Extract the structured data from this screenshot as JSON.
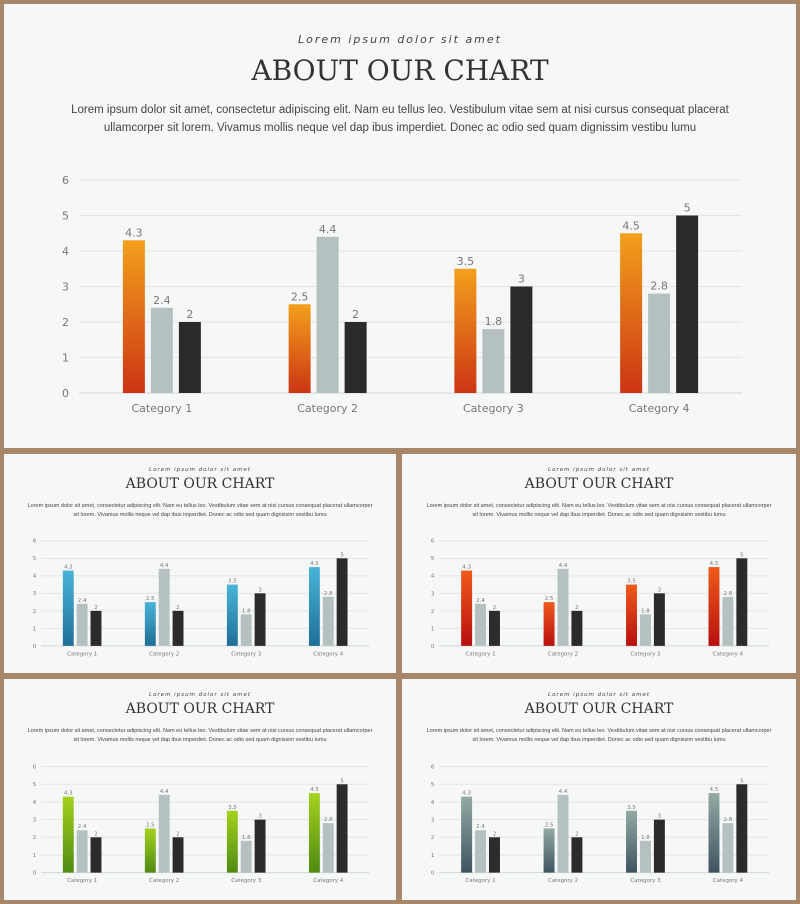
{
  "subtitle": "Lorem ipsum dolor sit amet",
  "title": "ABOUT OUR CHART",
  "body": "Lorem ipsum dolor sit amet, consectetur adipiscing elit. Nam eu tellus leo. Vestibulum vitae sem at nisi cursus consequat placerat ullamcorper sit lorem. Vivamus mollis neque vel dap ibus imperdiet. Donec ac odio sed quam dignissim vestibu lumu",
  "chart_data": [
    {
      "type": "bar",
      "variant": "orange",
      "categories": [
        "Category 1",
        "Category 2",
        "Category 3",
        "Category 4"
      ],
      "series": [
        {
          "values": [
            4.3,
            2.5,
            3.5,
            4.5
          ],
          "color_top": "#f3a01c",
          "color_bottom": "#cc3514"
        },
        {
          "values": [
            2.4,
            4.4,
            1.8,
            2.8
          ],
          "color": "#b5c0c0"
        },
        {
          "values": [
            2,
            2,
            3,
            5
          ],
          "color": "#2b2b2b"
        }
      ],
      "ylim": [
        0,
        6
      ],
      "yticks": [
        0,
        1,
        2,
        3,
        4,
        5,
        6
      ],
      "grid": true,
      "legend": "none"
    },
    {
      "type": "bar",
      "variant": "blue",
      "categories": [
        "Category 1",
        "Category 2",
        "Category 3",
        "Category 4"
      ],
      "series": [
        {
          "values": [
            4.3,
            2.5,
            3.5,
            4.5
          ],
          "color_top": "#49b4d8",
          "color_bottom": "#1f6f96"
        },
        {
          "values": [
            2.4,
            4.4,
            1.8,
            2.8
          ],
          "color": "#b5c0c0"
        },
        {
          "values": [
            2,
            2,
            3,
            5
          ],
          "color": "#2b2b2b"
        }
      ],
      "ylim": [
        0,
        6
      ],
      "yticks": [
        0,
        1,
        2,
        3,
        4,
        5,
        6
      ],
      "grid": true,
      "legend": "none"
    },
    {
      "type": "bar",
      "variant": "red",
      "categories": [
        "Category 1",
        "Category 2",
        "Category 3",
        "Category 4"
      ],
      "series": [
        {
          "values": [
            4.3,
            2.5,
            3.5,
            4.5
          ],
          "color_top": "#ef5b1c",
          "color_bottom": "#b80f0f"
        },
        {
          "values": [
            2.4,
            4.4,
            1.8,
            2.8
          ],
          "color": "#b5c0c0"
        },
        {
          "values": [
            2,
            2,
            3,
            5
          ],
          "color": "#2b2b2b"
        }
      ],
      "ylim": [
        0,
        6
      ],
      "yticks": [
        0,
        1,
        2,
        3,
        4,
        5,
        6
      ],
      "grid": true,
      "legend": "none"
    },
    {
      "type": "bar",
      "variant": "green",
      "categories": [
        "Category 1",
        "Category 2",
        "Category 3",
        "Category 4"
      ],
      "series": [
        {
          "values": [
            4.3,
            2.5,
            3.5,
            4.5
          ],
          "color_top": "#a5d21f",
          "color_bottom": "#4f8a12"
        },
        {
          "values": [
            2.4,
            4.4,
            1.8,
            2.8
          ],
          "color": "#b5c0c0"
        },
        {
          "values": [
            2,
            2,
            3,
            5
          ],
          "color": "#2b2b2b"
        }
      ],
      "ylim": [
        0,
        6
      ],
      "yticks": [
        0,
        1,
        2,
        3,
        4,
        5,
        6
      ],
      "grid": true,
      "legend": "none"
    },
    {
      "type": "bar",
      "variant": "slate",
      "categories": [
        "Category 1",
        "Category 2",
        "Category 3",
        "Category 4"
      ],
      "series": [
        {
          "values": [
            4.3,
            2.5,
            3.5,
            4.5
          ],
          "color_top": "#93aaa4",
          "color_bottom": "#3f5460"
        },
        {
          "values": [
            2.4,
            4.4,
            1.8,
            2.8
          ],
          "color": "#b5c0c0"
        },
        {
          "values": [
            2,
            2,
            3,
            5
          ],
          "color": "#2b2b2b"
        }
      ],
      "ylim": [
        0,
        6
      ],
      "yticks": [
        0,
        1,
        2,
        3,
        4,
        5,
        6
      ],
      "grid": true,
      "legend": "none"
    }
  ]
}
